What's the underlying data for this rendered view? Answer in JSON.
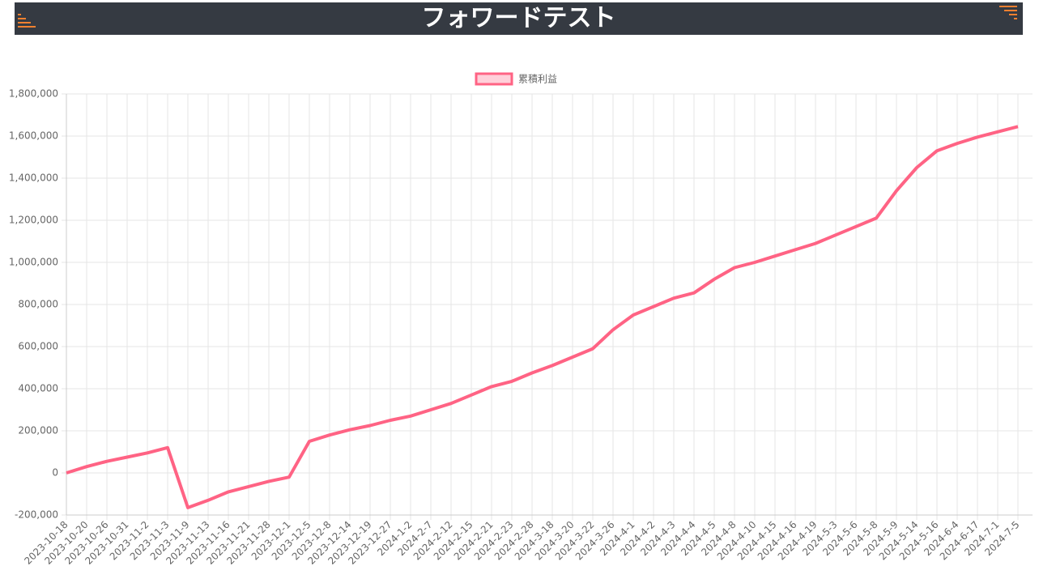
{
  "header": {
    "title": "フォワードテスト"
  },
  "chart_data": {
    "type": "line",
    "legend": "累積利益",
    "color": "#ff6384",
    "categories": [
      "2023-10-18",
      "2023-10-20",
      "2023-10-26",
      "2023-10-31",
      "2023-11-2",
      "2023-11-3",
      "2023-11-9",
      "2023-11-13",
      "2023-11-16",
      "2023-11-21",
      "2023-11-28",
      "2023-12-1",
      "2023-12-5",
      "2023-12-8",
      "2023-12-14",
      "2023-12-19",
      "2023-12-27",
      "2024-1-2",
      "2024-2-7",
      "2024-2-12",
      "2024-2-15",
      "2024-2-21",
      "2024-2-23",
      "2024-2-28",
      "2024-3-18",
      "2024-3-20",
      "2024-3-22",
      "2024-3-26",
      "2024-4-1",
      "2024-4-2",
      "2024-4-3",
      "2024-4-4",
      "2024-4-5",
      "2024-4-8",
      "2024-4-10",
      "2024-4-15",
      "2024-4-16",
      "2024-4-19",
      "2024-5-3",
      "2024-5-6",
      "2024-5-8",
      "2024-5-9",
      "2024-5-14",
      "2024-5-16",
      "2024-6-4",
      "2024-6-17",
      "2024-7-1",
      "2024-7-5"
    ],
    "values": [
      0,
      30000,
      55000,
      75000,
      95000,
      120000,
      -165000,
      -130000,
      -90000,
      -65000,
      -40000,
      -20000,
      150000,
      180000,
      205000,
      225000,
      250000,
      270000,
      300000,
      330000,
      370000,
      410000,
      435000,
      475000,
      510000,
      550000,
      590000,
      680000,
      750000,
      790000,
      830000,
      855000,
      920000,
      975000,
      1000000,
      1030000,
      1060000,
      1090000,
      1130000,
      1170000,
      1210000,
      1340000,
      1450000,
      1530000,
      1565000,
      1595000,
      1620000,
      1645000
    ],
    "ylim": [
      -200000,
      1800000
    ],
    "yticks": [
      {
        "value": -200000,
        "label": "-200,000"
      },
      0,
      {
        "value": 200000,
        "label": "200,000"
      },
      {
        "value": 400000,
        "label": "400,000"
      },
      {
        "value": 600000,
        "label": "600,000"
      },
      {
        "value": 800000,
        "label": "800,000"
      },
      {
        "value": 1000000,
        "label": "1,000,000"
      },
      {
        "value": 1200000,
        "label": "1,200,000"
      },
      {
        "value": 1400000,
        "label": "1,400,000"
      },
      {
        "value": 1600000,
        "label": "1,600,000"
      },
      {
        "value": 1800000,
        "label": "1,800,000"
      }
    ],
    "grid": true
  }
}
